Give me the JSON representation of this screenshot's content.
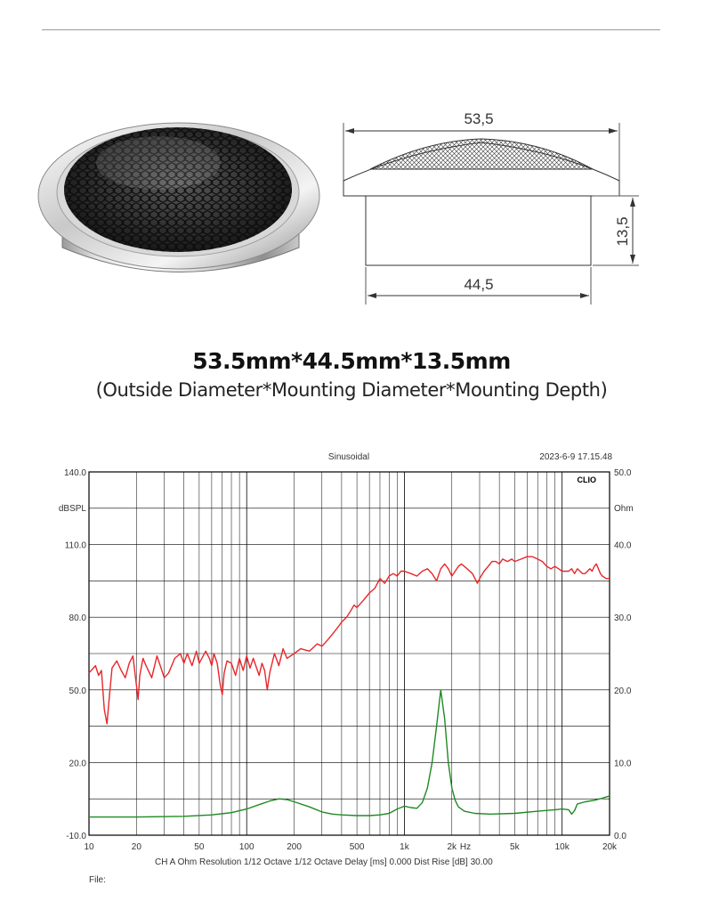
{
  "spec": {
    "title": "53.5mm*44.5mm*13.5mm",
    "subtitle": "(Outside Diameter*Mounting Diameter*Mounting Depth)"
  },
  "drawing": {
    "top_dimension": "53,5",
    "bottom_dimension": "44,5",
    "side_dimension": "13,5"
  },
  "chart_data": {
    "type": "line",
    "header_center": "Sinusoidal",
    "header_right": "2023-6-9 17.15.48",
    "brand": "CLIO",
    "left_unit": "dBSPL",
    "right_unit": "Ohm",
    "x_scale": "log",
    "xlim": [
      10,
      20000
    ],
    "ylim_left": [
      -10,
      140
    ],
    "ylim_right": [
      0,
      50
    ],
    "grid": true,
    "x_tick_labels": [
      {
        "value": 10,
        "label": "10"
      },
      {
        "value": 20,
        "label": "20"
      },
      {
        "value": 50,
        "label": "50"
      },
      {
        "value": 100,
        "label": "100"
      },
      {
        "value": 200,
        "label": "200"
      },
      {
        "value": 500,
        "label": "500"
      },
      {
        "value": 1000,
        "label": "1k"
      },
      {
        "value": 2000,
        "label": "2k"
      },
      {
        "value": 5000,
        "label": "5k"
      },
      {
        "value": 10000,
        "label": "10k"
      },
      {
        "value": 20000,
        "label": "20k"
      }
    ],
    "x_unit_label": "Hz",
    "left_tick_labels": [
      {
        "value": 140,
        "label": "140.0"
      },
      {
        "value": 110,
        "label": "110.0"
      },
      {
        "value": 80,
        "label": "80.0"
      },
      {
        "value": 50,
        "label": "50.0"
      },
      {
        "value": 20,
        "label": "20.0"
      },
      {
        "value": -10,
        "label": "-10.0"
      }
    ],
    "right_tick_labels": [
      {
        "value": 50,
        "label": "50.0"
      },
      {
        "value": 40,
        "label": "40.0"
      },
      {
        "value": 30,
        "label": "30.0"
      },
      {
        "value": 20,
        "label": "20.0"
      },
      {
        "value": 10,
        "label": "10.0"
      },
      {
        "value": 0,
        "label": "0.0"
      }
    ],
    "footer": "CH A   Ohm   Resolution 1/12 Octave   1/12 Octave   Delay [ms] 0.000   Dist Rise [dB] 30.00",
    "file_label": "File:",
    "series": [
      {
        "axis": "left",
        "color": "#e8262a",
        "points": [
          [
            10,
            57
          ],
          [
            11,
            60
          ],
          [
            11.5,
            56
          ],
          [
            12,
            58
          ],
          [
            12.5,
            42
          ],
          [
            13,
            36
          ],
          [
            13.5,
            48
          ],
          [
            14,
            59
          ],
          [
            15,
            62
          ],
          [
            16,
            58
          ],
          [
            17,
            55
          ],
          [
            18,
            61
          ],
          [
            19,
            64
          ],
          [
            20,
            52
          ],
          [
            20.5,
            46
          ],
          [
            21,
            56
          ],
          [
            22,
            63
          ],
          [
            23,
            60
          ],
          [
            25,
            55
          ],
          [
            27,
            64
          ],
          [
            29,
            58
          ],
          [
            30,
            55
          ],
          [
            32,
            57
          ],
          [
            35,
            63
          ],
          [
            38,
            65
          ],
          [
            40,
            61
          ],
          [
            42,
            65
          ],
          [
            45,
            60
          ],
          [
            48,
            66
          ],
          [
            50,
            61
          ],
          [
            55,
            66
          ],
          [
            58,
            63
          ],
          [
            60,
            60
          ],
          [
            62,
            65
          ],
          [
            65,
            61
          ],
          [
            68,
            52
          ],
          [
            70,
            48
          ],
          [
            72,
            57
          ],
          [
            75,
            62
          ],
          [
            80,
            61
          ],
          [
            85,
            56
          ],
          [
            90,
            63
          ],
          [
            95,
            58
          ],
          [
            100,
            64
          ],
          [
            105,
            59
          ],
          [
            110,
            63
          ],
          [
            120,
            56
          ],
          [
            125,
            61
          ],
          [
            130,
            58
          ],
          [
            135,
            50
          ],
          [
            140,
            57
          ],
          [
            150,
            65
          ],
          [
            160,
            60
          ],
          [
            170,
            67
          ],
          [
            180,
            63
          ],
          [
            200,
            65
          ],
          [
            220,
            67
          ],
          [
            250,
            66
          ],
          [
            280,
            69
          ],
          [
            300,
            68
          ],
          [
            330,
            71
          ],
          [
            350,
            73
          ],
          [
            380,
            76
          ],
          [
            400,
            78
          ],
          [
            430,
            80
          ],
          [
            450,
            82
          ],
          [
            480,
            85
          ],
          [
            500,
            84
          ],
          [
            550,
            87
          ],
          [
            600,
            90
          ],
          [
            650,
            92
          ],
          [
            700,
            96
          ],
          [
            750,
            94
          ],
          [
            800,
            97
          ],
          [
            850,
            98
          ],
          [
            900,
            97
          ],
          [
            950,
            99
          ],
          [
            1000,
            99
          ],
          [
            1100,
            98
          ],
          [
            1200,
            97
          ],
          [
            1300,
            99
          ],
          [
            1400,
            100
          ],
          [
            1500,
            98
          ],
          [
            1600,
            95
          ],
          [
            1700,
            100
          ],
          [
            1800,
            102
          ],
          [
            1900,
            100
          ],
          [
            2000,
            97
          ],
          [
            2100,
            99
          ],
          [
            2200,
            101
          ],
          [
            2300,
            102
          ],
          [
            2500,
            100
          ],
          [
            2700,
            98
          ],
          [
            2900,
            94
          ],
          [
            3000,
            96
          ],
          [
            3200,
            99
          ],
          [
            3400,
            101
          ],
          [
            3600,
            103
          ],
          [
            3800,
            103
          ],
          [
            4000,
            102
          ],
          [
            4200,
            104
          ],
          [
            4500,
            103
          ],
          [
            4800,
            104
          ],
          [
            5000,
            103
          ],
          [
            5500,
            104
          ],
          [
            6000,
            105
          ],
          [
            6500,
            105
          ],
          [
            7000,
            104
          ],
          [
            7500,
            103
          ],
          [
            8000,
            101
          ],
          [
            8500,
            100
          ],
          [
            9000,
            101
          ],
          [
            9500,
            100
          ],
          [
            10000,
            99
          ],
          [
            10500,
            99
          ],
          [
            11000,
            99
          ],
          [
            11500,
            100
          ],
          [
            12000,
            98
          ],
          [
            12500,
            100
          ],
          [
            13000,
            99
          ],
          [
            13500,
            98
          ],
          [
            14000,
            98
          ],
          [
            14500,
            99
          ],
          [
            15000,
            100
          ],
          [
            15500,
            99
          ],
          [
            16000,
            101
          ],
          [
            16500,
            102
          ],
          [
            17000,
            100
          ],
          [
            17500,
            98
          ],
          [
            18000,
            97
          ],
          [
            19000,
            96
          ],
          [
            20000,
            96
          ]
        ]
      },
      {
        "axis": "right",
        "color": "#1e8a23",
        "points": [
          [
            10,
            2.5
          ],
          [
            20,
            2.5
          ],
          [
            40,
            2.6
          ],
          [
            60,
            2.8
          ],
          [
            80,
            3.1
          ],
          [
            100,
            3.6
          ],
          [
            120,
            4.2
          ],
          [
            140,
            4.7
          ],
          [
            160,
            5.0
          ],
          [
            180,
            4.9
          ],
          [
            200,
            4.6
          ],
          [
            250,
            3.9
          ],
          [
            300,
            3.2
          ],
          [
            350,
            2.9
          ],
          [
            400,
            2.8
          ],
          [
            500,
            2.7
          ],
          [
            600,
            2.7
          ],
          [
            700,
            2.8
          ],
          [
            800,
            3.0
          ],
          [
            900,
            3.6
          ],
          [
            1000,
            4.0
          ],
          [
            1100,
            3.8
          ],
          [
            1200,
            3.7
          ],
          [
            1300,
            4.5
          ],
          [
            1400,
            6.5
          ],
          [
            1500,
            10
          ],
          [
            1600,
            15
          ],
          [
            1700,
            20
          ],
          [
            1800,
            16
          ],
          [
            1900,
            10
          ],
          [
            2000,
            6.5
          ],
          [
            2100,
            4.8
          ],
          [
            2200,
            3.9
          ],
          [
            2400,
            3.3
          ],
          [
            2800,
            3.0
          ],
          [
            3500,
            2.9
          ],
          [
            5000,
            3.0
          ],
          [
            7000,
            3.3
          ],
          [
            9000,
            3.5
          ],
          [
            10000,
            3.6
          ],
          [
            11000,
            3.5
          ],
          [
            11500,
            2.9
          ],
          [
            12000,
            3.4
          ],
          [
            12500,
            4.3
          ],
          [
            14000,
            4.6
          ],
          [
            16000,
            4.8
          ],
          [
            18000,
            5.1
          ],
          [
            20000,
            5.4
          ]
        ]
      }
    ]
  }
}
